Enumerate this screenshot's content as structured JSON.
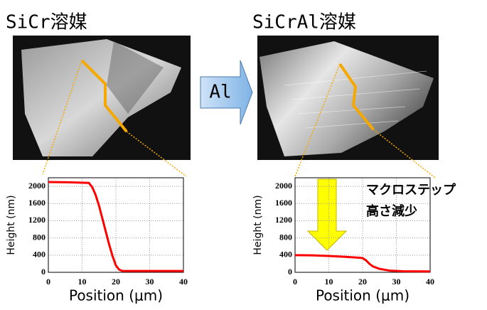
{
  "arrow_label": "Al",
  "chart_data": [
    {
      "type": "line",
      "title": "SiCr溶媒",
      "x_label": "Position (μm)",
      "y_label": "Height (nm)",
      "series": [
        {
          "name": "SiCr",
          "color": "#ff0000",
          "x": [
            0,
            6,
            12,
            13,
            14,
            15,
            16,
            17,
            18,
            19,
            20,
            21,
            22,
            30,
            40
          ],
          "values": [
            2100,
            2095,
            2080,
            1980,
            1800,
            1550,
            1250,
            950,
            650,
            380,
            160,
            60,
            30,
            30,
            30
          ]
        }
      ],
      "xlim": [
        0,
        40
      ],
      "xticks": [
        0,
        10,
        20,
        30,
        40
      ],
      "ylim": [
        0,
        2200
      ],
      "yticks": [
        0,
        400,
        800,
        1200,
        1600,
        2000
      ],
      "grid": true
    },
    {
      "type": "line",
      "title": "SiCrAl溶媒",
      "x_label": "Position (μm)",
      "y_label": "Height (nm)",
      "annotations": [
        "マクロステップ",
        "高さ減少"
      ],
      "series": [
        {
          "name": "SiCrAl",
          "color": "#ff0000",
          "x": [
            0,
            5,
            10,
            15,
            19,
            20,
            21,
            22,
            23,
            25,
            28,
            32,
            40
          ],
          "values": [
            400,
            395,
            380,
            360,
            340,
            330,
            280,
            200,
            140,
            80,
            40,
            25,
            20
          ]
        }
      ],
      "xlim": [
        0,
        40
      ],
      "xticks": [
        0,
        10,
        20,
        30,
        40
      ],
      "ylim": [
        0,
        2200
      ],
      "yticks": [
        0,
        400,
        800,
        1200,
        1600,
        2000
      ],
      "grid": true
    }
  ]
}
